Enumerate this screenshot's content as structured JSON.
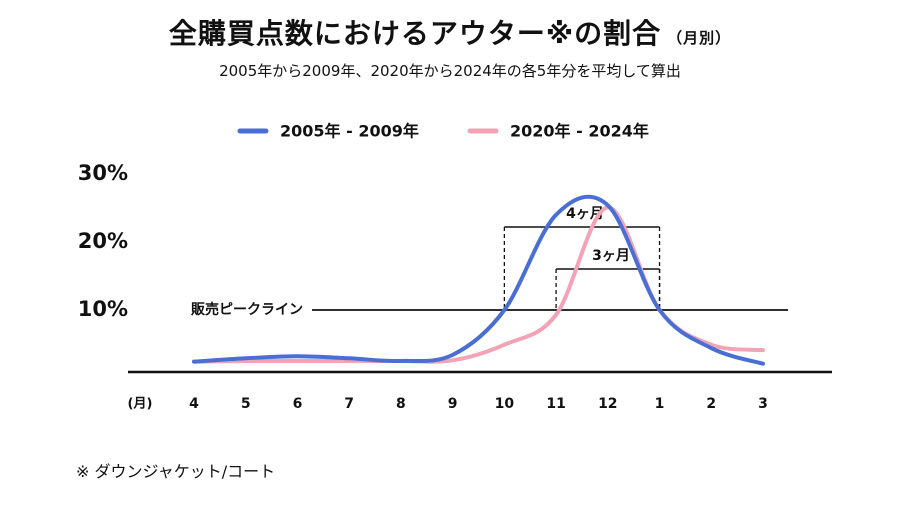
{
  "chart_data": {
    "type": "line",
    "title": "全購買点数におけるアウター※の割合",
    "title_note": "（月別）",
    "subtitle": "2005年から2009年、2020年から2024年の各5年分を平均して算出",
    "x_label": "(月)",
    "categories": [
      "4",
      "5",
      "6",
      "7",
      "8",
      "9",
      "10",
      "11",
      "12",
      "1",
      "2",
      "3"
    ],
    "series": [
      {
        "name": "2005年 - 2009年",
        "color": "#4a6fd4",
        "values": [
          2.4,
          2.9,
          3.2,
          2.9,
          2.5,
          3.4,
          10,
          24,
          25.4,
          10,
          4.4,
          2.1
        ]
      },
      {
        "name": "2020年 - 2024年",
        "color": "#f2a3b5",
        "values": [
          2.4,
          2.5,
          2.5,
          2.5,
          2.5,
          2.6,
          4.9,
          9.3,
          25.1,
          10,
          4.9,
          4.1
        ]
      }
    ],
    "ylim": [
      0,
      30
    ],
    "yticks": [
      {
        "value": 10,
        "label": "10%"
      },
      {
        "value": 20,
        "label": "20%"
      },
      {
        "value": 30,
        "label": "30%"
      }
    ],
    "peak_line": {
      "label": "販売ピークライン",
      "value": 10
    },
    "annotations": [
      "4ヶ月",
      "3ヶ月"
    ],
    "footnote": "※ ダウンジャケット/コート"
  }
}
